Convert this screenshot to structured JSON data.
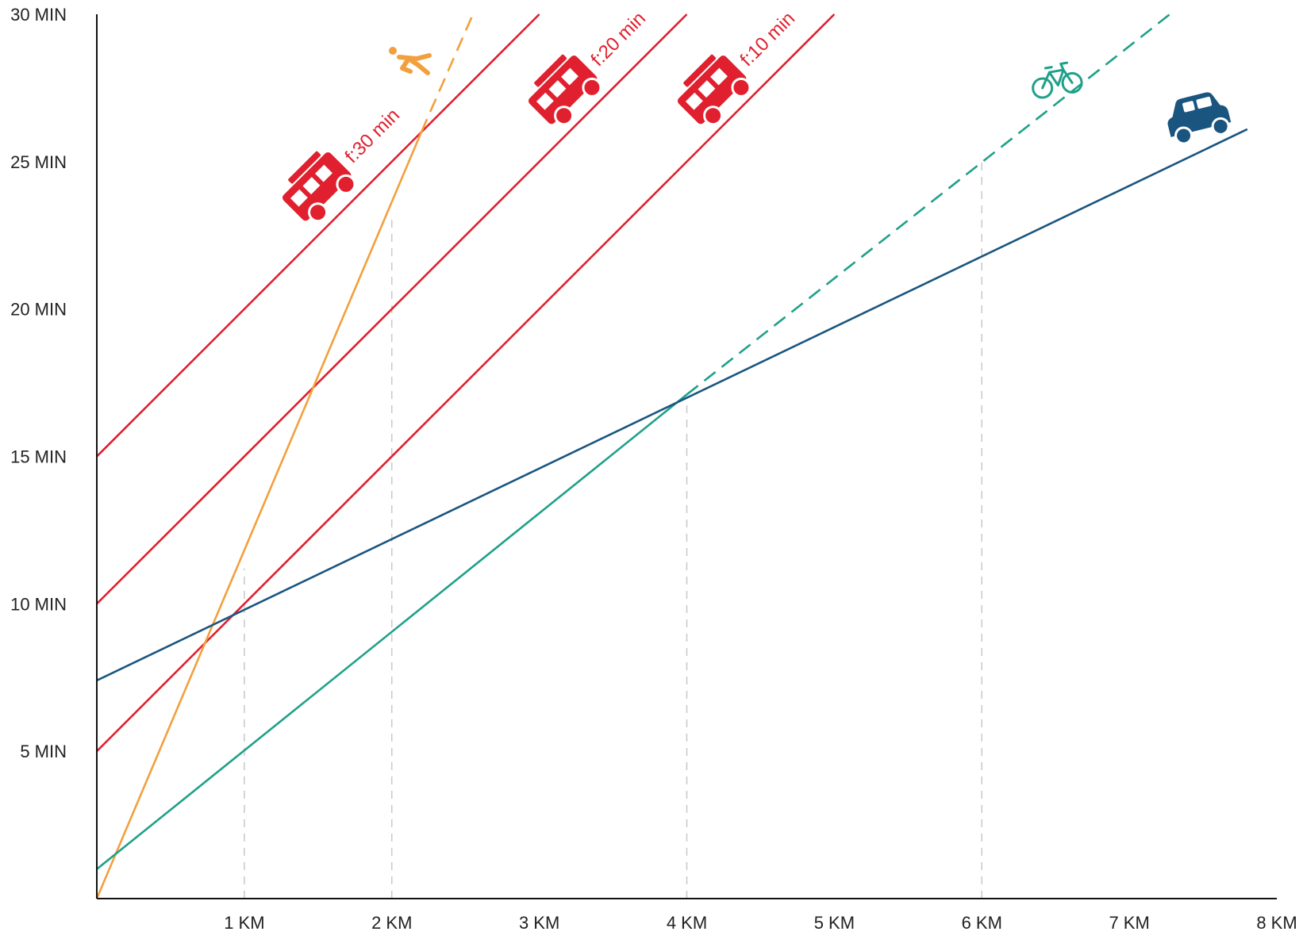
{
  "chart_data": {
    "type": "line",
    "title": "",
    "xlabel": "",
    "ylabel": "",
    "xlim": [
      0,
      8
    ],
    "ylim": [
      0,
      30
    ],
    "x_ticks": [
      {
        "value": 1,
        "label": "1 KM"
      },
      {
        "value": 2,
        "label": "2 KM"
      },
      {
        "value": 3,
        "label": "3 KM"
      },
      {
        "value": 4,
        "label": "4 KM"
      },
      {
        "value": 5,
        "label": "5 KM"
      },
      {
        "value": 6,
        "label": "6 KM"
      },
      {
        "value": 7,
        "label": "7 KM"
      },
      {
        "value": 8,
        "label": "8 KM"
      }
    ],
    "y_ticks": [
      {
        "value": 5,
        "label": "5 MIN"
      },
      {
        "value": 10,
        "label": "10 MIN"
      },
      {
        "value": 15,
        "label": "15 MIN"
      },
      {
        "value": 20,
        "label": "20 MIN"
      },
      {
        "value": 25,
        "label": "25 MIN"
      },
      {
        "value": 30,
        "label": "30 MIN"
      }
    ],
    "grid": "dashed vertical reference lines at 1, 2, 4, 6 km",
    "legend": "icons placed at the end of each line",
    "series": [
      {
        "name": "f:10 min",
        "mode": "bus",
        "icon": "bus-icon",
        "color": "#e0202e",
        "segments": [
          {
            "x": [
              0,
              5
            ],
            "y": [
              5,
              30
            ],
            "style": "solid"
          }
        ]
      },
      {
        "name": "f:20 min",
        "mode": "bus",
        "icon": "bus-icon",
        "color": "#e0202e",
        "segments": [
          {
            "x": [
              0,
              4
            ],
            "y": [
              10,
              30
            ],
            "style": "solid"
          }
        ]
      },
      {
        "name": "f:30 min",
        "mode": "bus",
        "icon": "bus-icon",
        "color": "#e0202e",
        "segments": [
          {
            "x": [
              0,
              3
            ],
            "y": [
              15,
              30
            ],
            "style": "solid"
          }
        ]
      },
      {
        "mode": "walk",
        "icon": "pedestrian-icon",
        "color": "#f2a03d",
        "segments": [
          {
            "x": [
              0,
              2.2
            ],
            "y": [
              0,
              26
            ],
            "style": "solid"
          },
          {
            "x": [
              2.2,
              2.55
            ],
            "y": [
              26,
              30
            ],
            "style": "dashed"
          }
        ]
      },
      {
        "mode": "bike",
        "icon": "bicycle-icon",
        "color": "#1fa08a",
        "segments": [
          {
            "x": [
              0,
              4
            ],
            "y": [
              1,
              17.1
            ],
            "style": "solid"
          },
          {
            "x": [
              4,
              7.3
            ],
            "y": [
              17.1,
              30.1
            ],
            "style": "dashed"
          }
        ]
      },
      {
        "mode": "car",
        "icon": "car-icon",
        "color": "#1a5580",
        "segments": [
          {
            "x": [
              0,
              7.8
            ],
            "y": [
              7.4,
              26.1
            ],
            "style": "solid"
          }
        ]
      }
    ],
    "reference_lines": [
      {
        "x": 1,
        "y_top": 11.2
      },
      {
        "x": 2,
        "y_top": 23.2
      },
      {
        "x": 4,
        "y_top": 17
      },
      {
        "x": 6,
        "y_top": 25
      }
    ]
  }
}
